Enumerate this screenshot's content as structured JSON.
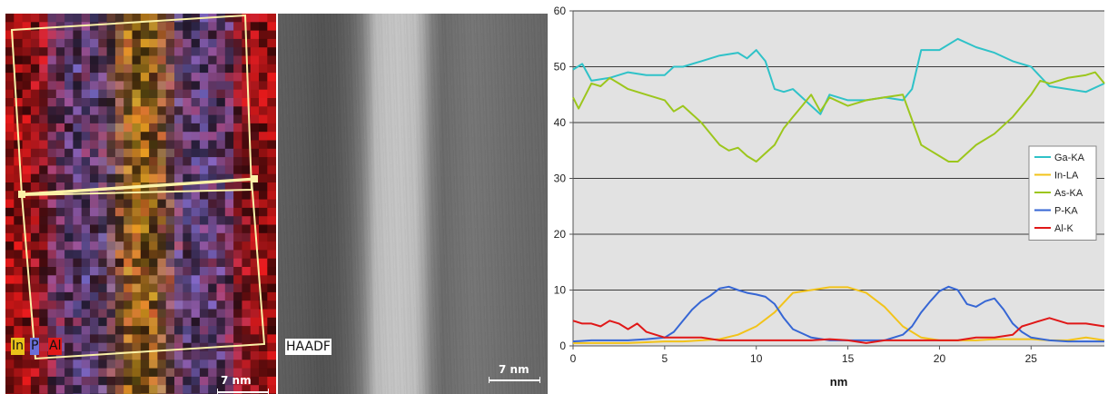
{
  "panels": {
    "eds_map": {
      "element_labels": [
        "In",
        "P",
        "Al"
      ],
      "label_colors": [
        "#e8c21a",
        "#6a6fd8",
        "#e01818"
      ],
      "scale_label": "7 nm"
    },
    "haadf": {
      "label": "HAADF",
      "scale_label": "7 nm"
    }
  },
  "chart_data": {
    "type": "line",
    "title": "",
    "xlabel": "nm",
    "ylabel": "",
    "xlim": [
      0,
      29
    ],
    "ylim": [
      0,
      60
    ],
    "xticks": [
      0,
      5,
      10,
      15,
      20,
      25
    ],
    "yticks": [
      0,
      10,
      20,
      30,
      40,
      50,
      60
    ],
    "grid": "horizontal",
    "background": "#e2e2e2",
    "legend_position": "right",
    "series": [
      {
        "name": "Ga-KA",
        "color": "#2fc2c8",
        "x": [
          0,
          0.5,
          1,
          2,
          3,
          4,
          5,
          5.5,
          6,
          7,
          8,
          9,
          9.5,
          10,
          10.5,
          11,
          11.5,
          12,
          13,
          13.5,
          14,
          15,
          16,
          17,
          18,
          18.5,
          19,
          20,
          21,
          22,
          23,
          24,
          25,
          26,
          27,
          28,
          29
        ],
        "y": [
          49.5,
          50.5,
          47.5,
          48,
          49,
          48.5,
          48.5,
          50,
          50,
          51,
          52,
          52.5,
          51.5,
          53,
          51,
          46,
          45.5,
          46,
          43,
          41.5,
          45,
          44,
          44,
          44.5,
          44,
          46,
          53,
          53,
          55,
          53.5,
          52.5,
          51,
          50,
          46.5,
          46,
          45.5,
          47
        ]
      },
      {
        "name": "In-LA",
        "color": "#f2c31a",
        "x": [
          0,
          3,
          5,
          6,
          7,
          8,
          9,
          10,
          11,
          12,
          13,
          14,
          15,
          16,
          17,
          18,
          19,
          20,
          21,
          22,
          23,
          24,
          25,
          26,
          27,
          28,
          29
        ],
        "y": [
          0.5,
          0.5,
          0.8,
          0.8,
          1,
          1.2,
          2,
          3.5,
          6,
          9.5,
          10,
          10.5,
          10.5,
          9.5,
          7,
          3.5,
          1.5,
          1,
          1,
          1,
          1.2,
          1.2,
          1.2,
          1,
          1,
          1.5,
          1
        ]
      },
      {
        "name": "As-KA",
        "color": "#9cc61c",
        "x": [
          0,
          0.3,
          1,
          1.5,
          2,
          2.5,
          3,
          4,
          5,
          5.5,
          6,
          7,
          8,
          8.5,
          9,
          9.5,
          10,
          10.5,
          11,
          11.5,
          12,
          12.5,
          13,
          13.5,
          14,
          15,
          16,
          17,
          18,
          19,
          19.5,
          20,
          20.5,
          21,
          22,
          23,
          24,
          25,
          25.5,
          26,
          27,
          28,
          28.5,
          29
        ],
        "y": [
          44.5,
          42.5,
          47,
          46.5,
          48,
          47,
          46,
          45,
          44,
          42,
          43,
          40,
          36,
          35,
          35.5,
          34,
          33,
          34.5,
          36,
          39,
          41,
          43,
          45,
          42,
          44.5,
          43,
          44,
          44.5,
          45,
          36,
          35,
          34,
          33,
          33,
          36,
          38,
          41,
          45,
          47.5,
          47,
          48,
          48.5,
          49,
          47
        ]
      },
      {
        "name": "P-KA",
        "color": "#3666d4",
        "x": [
          0,
          1,
          2,
          3,
          4,
          5,
          5.5,
          6,
          6.5,
          7,
          7.5,
          8,
          8.5,
          9,
          9.5,
          10,
          10.5,
          11,
          11.5,
          12,
          13,
          14,
          15,
          16,
          17,
          18,
          18.5,
          19,
          19.5,
          20,
          20.5,
          21,
          21.5,
          22,
          22.5,
          23,
          23.5,
          24,
          24.5,
          25,
          26,
          27,
          28,
          29
        ],
        "y": [
          0.8,
          1,
          1,
          1,
          1.2,
          1.5,
          2.5,
          4.5,
          6.5,
          8,
          9,
          10.3,
          10.6,
          10,
          9.5,
          9.2,
          8.8,
          7.5,
          5,
          3,
          1.5,
          1,
          1,
          1,
          1,
          2,
          3.5,
          6,
          8,
          9.8,
          10.6,
          10,
          7.5,
          7,
          8,
          8.5,
          6.5,
          4,
          2.5,
          1.5,
          1,
          0.8,
          0.8,
          0.8
        ]
      },
      {
        "name": "Al-K",
        "color": "#e01818",
        "x": [
          0,
          0.5,
          1,
          1.5,
          2,
          2.5,
          3,
          3.5,
          4,
          4.5,
          5,
          6,
          7,
          8,
          9,
          10,
          11,
          12,
          13,
          14,
          15,
          16,
          17,
          18,
          19,
          20,
          21,
          22,
          23,
          24,
          24.5,
          25,
          25.5,
          26,
          27,
          28,
          29
        ],
        "y": [
          4.5,
          4,
          4,
          3.5,
          4.5,
          4,
          3,
          4,
          2.5,
          2,
          1.5,
          1.5,
          1.5,
          1,
          1,
          1,
          1,
          1,
          1,
          1.2,
          1,
          0.5,
          1,
          1,
          1,
          1,
          1,
          1.5,
          1.5,
          2,
          3.5,
          4,
          4.5,
          5,
          4,
          4,
          3.5
        ]
      }
    ]
  }
}
